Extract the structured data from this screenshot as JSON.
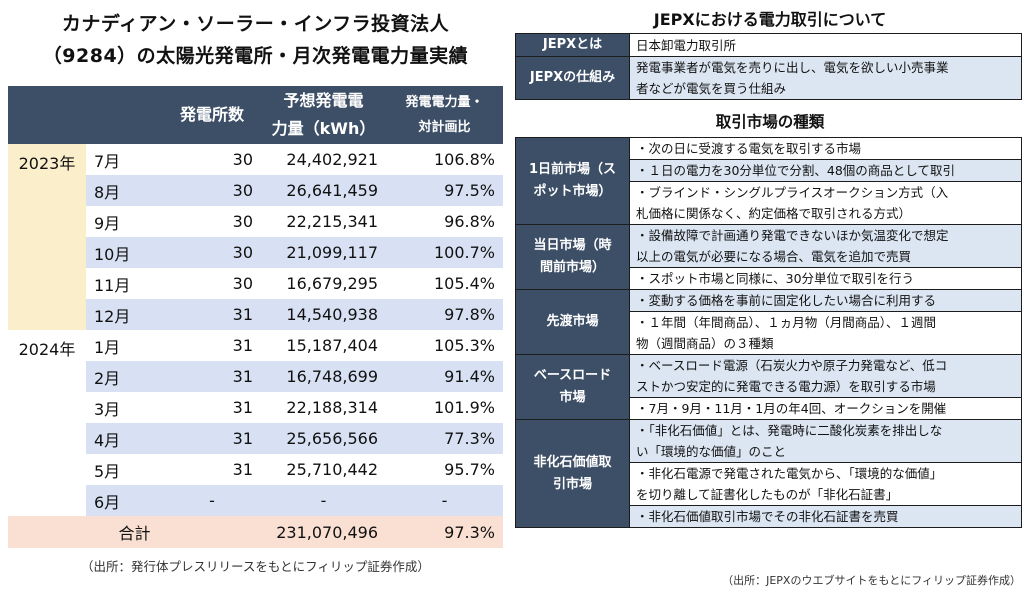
{
  "left": {
    "title_line1": "カナディアン・ソーラー・インフラ投資法人",
    "title_line2": "（9284）の太陽光発電所・月次発電電力量実績",
    "headers": {
      "plants": "発電所数",
      "forecast_a": "予想発電電",
      "forecast_b": "力量（kWh）",
      "ratio_a": "発電電力量・",
      "ratio_b": "対計画比"
    },
    "year_2023": "2023年",
    "year_2024": "2024年",
    "rows": [
      {
        "month": "7月",
        "plants": "30",
        "forecast": "24,402,921",
        "ratio": "106.8%"
      },
      {
        "month": "8月",
        "plants": "30",
        "forecast": "26,641,459",
        "ratio": "97.5%"
      },
      {
        "month": "9月",
        "plants": "30",
        "forecast": "22,215,341",
        "ratio": "96.8%"
      },
      {
        "month": "10月",
        "plants": "30",
        "forecast": "21,099,117",
        "ratio": "100.7%"
      },
      {
        "month": "11月",
        "plants": "30",
        "forecast": "16,679,295",
        "ratio": "105.4%"
      },
      {
        "month": "12月",
        "plants": "31",
        "forecast": "14,540,938",
        "ratio": "97.8%"
      },
      {
        "month": "1月",
        "plants": "31",
        "forecast": "15,187,404",
        "ratio": "105.3%"
      },
      {
        "month": "2月",
        "plants": "31",
        "forecast": "16,748,699",
        "ratio": "91.4%"
      },
      {
        "month": "3月",
        "plants": "31",
        "forecast": "22,188,314",
        "ratio": "101.9%"
      },
      {
        "month": "4月",
        "plants": "31",
        "forecast": "25,656,566",
        "ratio": "77.3%"
      },
      {
        "month": "5月",
        "plants": "31",
        "forecast": "25,710,442",
        "ratio": "95.7%"
      },
      {
        "month": "6月",
        "plants": "-",
        "forecast": "-",
        "ratio": "-"
      }
    ],
    "total": {
      "label": "合計",
      "forecast": "231,070,496",
      "ratio": "97.3%"
    },
    "source": "（出所：発行体プレスリリースをもとにフィリップ証券作成）"
  },
  "right": {
    "title": "JEPXにおける電力取引について",
    "def": [
      {
        "head": "JEPXとは",
        "body": "日本卸電力取引所"
      },
      {
        "head": "JEPXの仕組み",
        "body_l1": "発電事業者が電気を売りに出し、電気を欲しい小売事業",
        "body_l2": "者などが電気を買う仕組み"
      }
    ],
    "markets_title": "取引市場の種類",
    "markets": {
      "spot": {
        "head_l1": "1日前市場（ス",
        "head_l2": "ポット市場）",
        "b1": "・次の日に受渡する電気を取引する市場",
        "b2": "・１日の電力を30分単位で分割、48個の商品として取引",
        "b3_l1": "・ブラインド・シングルプライスオークション方式（入",
        "b3_l2": "札価格に関係なく、約定価格で取引される方式）"
      },
      "intraday": {
        "head_l1": "当日市場（時",
        "head_l2": "間前市場）",
        "b1_l1": "・設備故障で計画通り発電できないほか気温変化で想定",
        "b1_l2": "以上の電気が必要になる場合、電気を追加で売買",
        "b2": "・スポット市場と同様に、30分単位で取引を行う"
      },
      "forward": {
        "head": "先渡市場",
        "b1": "・変動する価格を事前に固定化したい場合に利用する",
        "b2_l1": "・１年間（年間商品）、１ヵ月物（月間商品）、１週間",
        "b2_l2": "物（週間商品）の３種類"
      },
      "baseload": {
        "head_l1": "ベースロード",
        "head_l2": "市場",
        "b1_l1": "・ベースロード電源（石炭火力や原子力発電など、低コ",
        "b1_l2": "ストかつ安定的に発電できる電力源）を取引する市場",
        "b2": "・7月・9月・11月・1月の年4回、オークションを開催"
      },
      "nonfossil": {
        "head_l1": "非化石価値取",
        "head_l2": "引市場",
        "b1_l1": "・「非化石価値」とは、発電時に二酸化炭素を排出しな",
        "b1_l2": "い「環境的な価値」のこと",
        "b2_l1": "・非化石電源で発電された電気から、「環境的な価値」",
        "b2_l2": "を切り離して証書化したものが「非化石証書」",
        "b3": "・非化石価値取引市場でその非化石証書を売買"
      }
    },
    "source": "（出所：JEPXのウエブサイトをもとにフィリップ証券作成）"
  }
}
